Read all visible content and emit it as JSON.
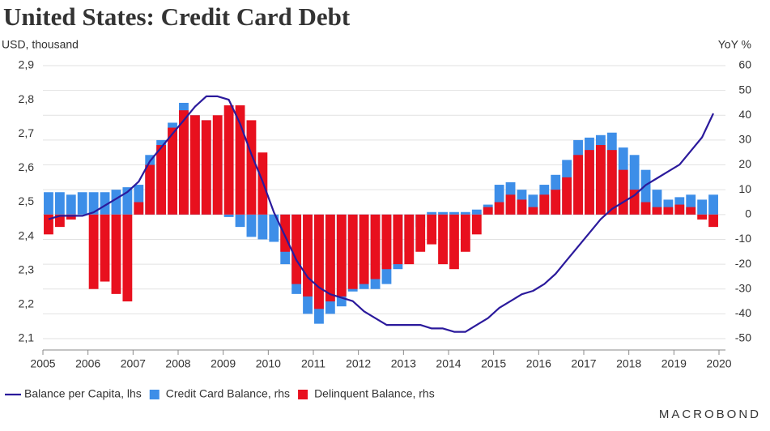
{
  "chart_data": {
    "type": "bar_line_combo",
    "title": "United States: Credit Card Debt",
    "ylabel": "USD, thousand",
    "y2label": "YoY %",
    "brand": "MACROBOND",
    "xlim": [
      2005,
      2020
    ],
    "xticks": [
      2005,
      2006,
      2007,
      2008,
      2009,
      2010,
      2011,
      2012,
      2013,
      2014,
      2015,
      2016,
      2017,
      2018,
      2019,
      2020
    ],
    "ylim": [
      2.1,
      2.9
    ],
    "yticks": [
      {
        "value": 2.1,
        "label": "2,1"
      },
      {
        "value": 2.2,
        "label": "2,2"
      },
      {
        "value": 2.3,
        "label": "2,3"
      },
      {
        "value": 2.4,
        "label": "2,4"
      },
      {
        "value": 2.5,
        "label": "2,5"
      },
      {
        "value": 2.6,
        "label": "2,6"
      },
      {
        "value": 2.7,
        "label": "2,7"
      },
      {
        "value": 2.8,
        "label": "2,8"
      },
      {
        "value": 2.9,
        "label": "2,9"
      }
    ],
    "y2lim": [
      -50,
      60
    ],
    "y2ticks": [
      -50,
      -40,
      -30,
      -20,
      -10,
      0,
      10,
      20,
      30,
      40,
      50,
      60
    ],
    "grid": "y2",
    "legend": "bottom-left",
    "x": [
      2005.125,
      2005.375,
      2005.625,
      2005.875,
      2006.125,
      2006.375,
      2006.625,
      2006.875,
      2007.125,
      2007.375,
      2007.625,
      2007.875,
      2008.125,
      2008.375,
      2008.625,
      2008.875,
      2009.125,
      2009.375,
      2009.625,
      2009.875,
      2010.125,
      2010.375,
      2010.625,
      2010.875,
      2011.125,
      2011.375,
      2011.625,
      2011.875,
      2012.125,
      2012.375,
      2012.625,
      2012.875,
      2013.125,
      2013.375,
      2013.625,
      2013.875,
      2014.125,
      2014.375,
      2014.625,
      2014.875,
      2015.125,
      2015.375,
      2015.625,
      2015.875,
      2016.125,
      2016.375,
      2016.625,
      2016.875,
      2017.125,
      2017.375,
      2017.625,
      2017.875,
      2018.125,
      2018.375,
      2018.625,
      2018.875,
      2019.125,
      2019.375,
      2019.625,
      2019.875
    ],
    "series": [
      {
        "name": "Balance per Capita, lhs",
        "type": "line",
        "color": "#2b1a9c",
        "axis": "y",
        "values": [
          2.45,
          2.46,
          2.46,
          2.46,
          2.47,
          2.49,
          2.51,
          2.53,
          2.56,
          2.62,
          2.66,
          2.7,
          2.74,
          2.78,
          2.81,
          2.81,
          2.8,
          2.73,
          2.64,
          2.56,
          2.47,
          2.4,
          2.33,
          2.28,
          2.25,
          2.23,
          2.22,
          2.21,
          2.18,
          2.16,
          2.14,
          2.14,
          2.14,
          2.14,
          2.13,
          2.13,
          2.12,
          2.12,
          2.14,
          2.16,
          2.19,
          2.21,
          2.23,
          2.24,
          2.26,
          2.29,
          2.33,
          2.37,
          2.41,
          2.45,
          2.48,
          2.5,
          2.52,
          2.55,
          2.57,
          2.59,
          2.61,
          2.65,
          2.69,
          2.76
        ]
      },
      {
        "name": "Credit Card Balance, rhs",
        "type": "bar",
        "color": "#3d8ee8",
        "axis": "y2",
        "values": [
          9,
          9,
          8,
          9,
          9,
          9,
          10,
          11,
          12,
          24,
          30,
          37,
          45,
          40,
          38,
          30,
          -1,
          -5,
          -9,
          -10,
          -11,
          -20,
          -32,
          -40,
          -44,
          -40,
          -37,
          -31,
          -30,
          -30,
          -28,
          -22,
          -15,
          -5,
          1,
          1,
          1,
          1,
          2,
          4,
          12,
          13,
          10,
          8,
          12,
          16,
          22,
          30,
          31,
          32,
          33,
          27,
          24,
          18,
          10,
          6,
          7,
          8,
          6,
          8
        ]
      },
      {
        "name": "Delinquent Balance, rhs",
        "type": "bar",
        "color": "#e8101e",
        "axis": "y2",
        "values": [
          -8,
          -5,
          -2,
          0,
          -30,
          -27,
          -32,
          -35,
          5,
          20,
          28,
          35,
          42,
          40,
          38,
          40,
          44,
          44,
          38,
          25,
          0,
          -15,
          -28,
          -33,
          -38,
          -35,
          -33,
          -30,
          -28,
          -26,
          -22,
          -20,
          -20,
          -15,
          -12,
          -20,
          -22,
          -15,
          -8,
          3,
          5,
          8,
          6,
          3,
          8,
          10,
          15,
          24,
          26,
          28,
          26,
          18,
          10,
          5,
          3,
          3,
          4,
          3,
          -2,
          -5
        ]
      }
    ]
  }
}
